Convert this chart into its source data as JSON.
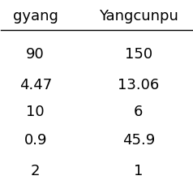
{
  "col1_header": "gyang",
  "col2_header": "Yangcunpu",
  "col1_values": [
    "90",
    "4.47",
    "10",
    "0.9",
    "2"
  ],
  "col2_values": [
    "150",
    "13.06",
    "6",
    "45.9",
    "1"
  ],
  "background_color": "#ffffff",
  "text_color": "#000000",
  "font_size": 13,
  "header_font_size": 13
}
